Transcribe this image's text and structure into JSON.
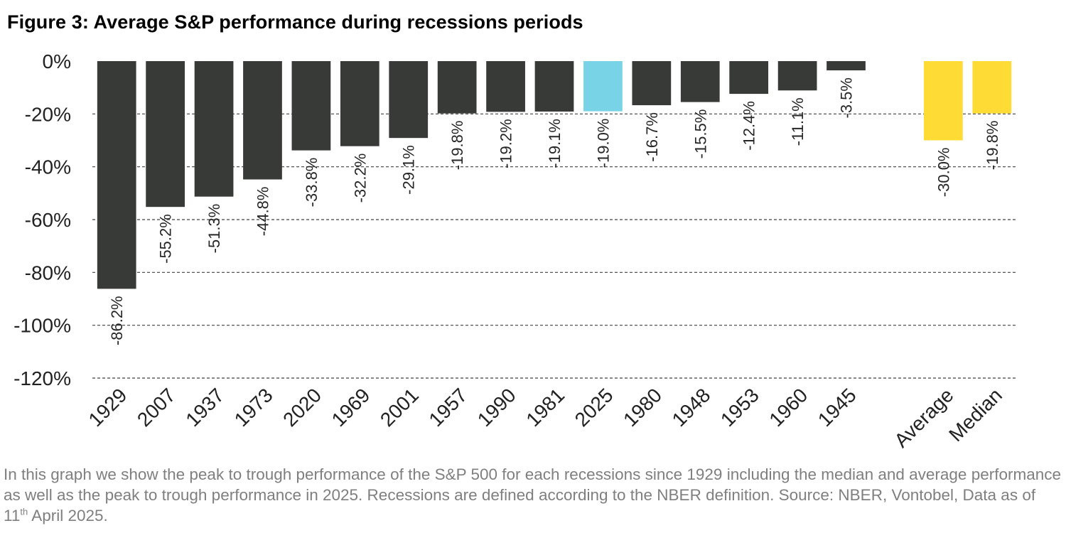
{
  "figure": {
    "title": "Figure 3: Average S&P performance during recessions periods"
  },
  "caption": {
    "text_part1": "In this graph we show the peak to trough performance of the S&P 500 for each recessions since 1929 including the median and average performance as well as the peak to trough performance in 2025. Recessions are defined according to the NBER definition. Source: NBER, Vontobel, Data as of  11",
    "superscript": "th",
    "text_part2": " April 2025."
  },
  "chart_data": {
    "type": "bar",
    "title": "Figure 3: Average S&P performance during recessions periods",
    "xlabel": "",
    "ylabel": "",
    "ylim": [
      -120,
      0
    ],
    "yticks": [
      0,
      -20,
      -40,
      -60,
      -80,
      -100,
      -120
    ],
    "ytick_labels": [
      "0%",
      "-20%",
      "-40%",
      "-60%",
      "-80%",
      "-100%",
      "-120%"
    ],
    "grid": "horizontal dashed",
    "legend": "none",
    "categories": [
      "1929",
      "2007",
      "1937",
      "1973",
      "2020",
      "1969",
      "2001",
      "1957",
      "1990",
      "1981",
      "2025",
      "1980",
      "1948",
      "1953",
      "1960",
      "1945",
      "",
      "Average",
      "Median"
    ],
    "values": [
      -86.2,
      -55.2,
      -51.3,
      -44.8,
      -33.8,
      -32.2,
      -29.1,
      -19.8,
      -19.2,
      -19.1,
      -19.0,
      -16.7,
      -15.5,
      -12.4,
      -11.1,
      -3.5,
      null,
      -30.0,
      -19.8
    ],
    "data_labels": [
      "-86.2%",
      "-55.2%",
      "-51.3%",
      "-44.8%",
      "-33.8%",
      "-32.2%",
      "-29.1%",
      "-19.8%",
      "-19.2%",
      "-19.1%",
      "-19.0%",
      "-16.7%",
      "-15.5%",
      "-12.4%",
      "-11.1%",
      "-3.5%",
      "",
      "-30.0%",
      "-19.8%"
    ],
    "colors": {
      "default": "#383a37",
      "highlight_2025": "#79d3e6",
      "summary": "#fedb35",
      "grid": "#404040",
      "axis_text": "#222222"
    },
    "bar_color_keys": [
      "default",
      "default",
      "default",
      "default",
      "default",
      "default",
      "default",
      "default",
      "default",
      "default",
      "highlight_2025",
      "default",
      "default",
      "default",
      "default",
      "default",
      "",
      "summary",
      "summary"
    ]
  }
}
